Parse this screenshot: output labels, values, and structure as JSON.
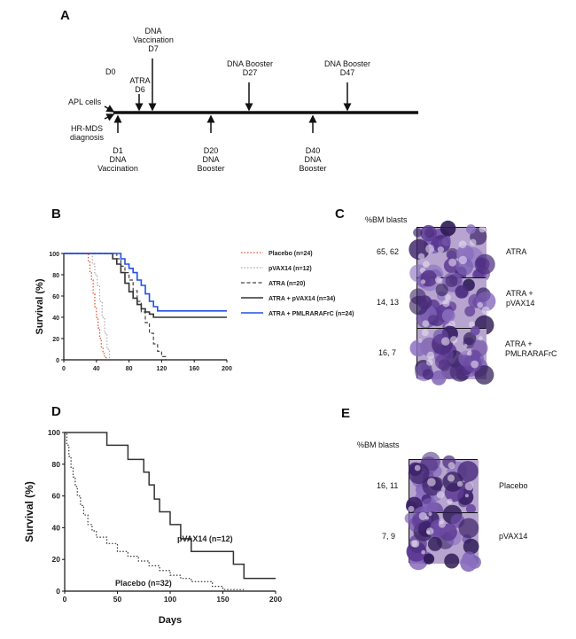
{
  "panels": {
    "a": "A",
    "b": "B",
    "c": "C",
    "d": "D",
    "e": "E"
  },
  "timeline": {
    "top_labels": {
      "d0": "D0",
      "apl": "APL cells",
      "atra_1": "ATRA",
      "atra_2": "D6",
      "vacc_1": "DNA",
      "vacc_2": "Vaccination",
      "vacc_3": "D7",
      "boost27_1": "DNA Booster",
      "boost27_2": "D27",
      "boost47_1": "DNA Booster",
      "boost47_2": "D47"
    },
    "bottom_labels": {
      "hr_1": "HR-MDS",
      "hr_2": "diagnosis",
      "d1_1": "D1",
      "d1_2": "DNA",
      "d1_3": "Vaccination",
      "d20_1": "D20",
      "d20_2": "DNA",
      "d20_3": "Booster",
      "d40_1": "D40",
      "d40_2": "DNA",
      "d40_3": "Booster"
    }
  },
  "panel_b": {
    "ylabel": "Survival (%)"
  },
  "panel_c": {
    "header": "%BM blasts",
    "rows": [
      {
        "value": "65, 62",
        "label_1": "ATRA",
        "label_2": ""
      },
      {
        "value": "14, 13",
        "label_1": "ATRA +",
        "label_2": "pVAX14"
      },
      {
        "value": "16, 7",
        "label_1": "ATRA +",
        "label_2": "PMLRARAFrC"
      }
    ]
  },
  "panel_d": {
    "ylabel": "Survival (%)",
    "xlabel": "Days"
  },
  "panel_e": {
    "header": "%BM blasts",
    "rows": [
      {
        "value": "16, 11",
        "label": "Placebo"
      },
      {
        "value": "7, 9",
        "label": "pVAX14"
      }
    ]
  },
  "colors": {
    "placebo": "#e8472b",
    "pvax14": "#a9a9a9",
    "atra": "#444444",
    "atra_pvax14": "#333333",
    "atra_pml": "#2251e0",
    "stain_dark": "#3b2268",
    "stain_light": "#b7a5cf"
  },
  "chart_data": [
    {
      "type": "line",
      "title": "",
      "xlabel": "",
      "ylabel": "Survival (%)",
      "xlim": [
        0,
        200
      ],
      "ylim": [
        0,
        100
      ],
      "xticks": [
        0,
        40,
        80,
        120,
        160,
        200
      ],
      "yticks": [
        0,
        20,
        40,
        60,
        80,
        100
      ],
      "legend_position": "right",
      "series": [
        {
          "name": "Placebo (n=24)",
          "color": "#e8472b",
          "style": "dotted",
          "x": [
            0,
            28,
            30,
            32,
            34,
            36,
            38,
            40,
            42,
            44,
            46,
            48,
            50,
            52
          ],
          "y": [
            100,
            100,
            92,
            83,
            75,
            62,
            50,
            40,
            30,
            20,
            12,
            6,
            2,
            0
          ]
        },
        {
          "name": "pVAX14 (n=12)",
          "color": "#a9a9a9",
          "style": "dotted",
          "x": [
            0,
            32,
            35,
            38,
            41,
            44,
            47,
            50,
            53,
            56
          ],
          "y": [
            100,
            100,
            90,
            80,
            70,
            55,
            40,
            25,
            10,
            0
          ]
        },
        {
          "name": "ATRA (n=20)",
          "color": "#444444",
          "style": "dashed",
          "x": [
            0,
            60,
            65,
            70,
            75,
            80,
            85,
            90,
            95,
            100,
            105,
            110,
            115,
            120,
            125
          ],
          "y": [
            100,
            100,
            95,
            88,
            82,
            75,
            65,
            55,
            45,
            35,
            25,
            15,
            8,
            3,
            0
          ]
        },
        {
          "name": "ATRA + pVAX14 (n=34)",
          "color": "#333333",
          "style": "solid",
          "x": [
            0,
            55,
            60,
            65,
            70,
            75,
            80,
            85,
            90,
            95,
            100,
            105,
            110,
            200
          ],
          "y": [
            100,
            100,
            95,
            90,
            82,
            72,
            64,
            58,
            52,
            48,
            45,
            43,
            40,
            40
          ]
        },
        {
          "name": "ATRA + PMLRARAFrC (n=24)",
          "color": "#2251e0",
          "style": "solid",
          "x": [
            0,
            65,
            70,
            75,
            80,
            85,
            90,
            95,
            100,
            105,
            110,
            115,
            200
          ],
          "y": [
            100,
            100,
            95,
            90,
            86,
            82,
            75,
            70,
            62,
            55,
            50,
            46,
            46
          ]
        }
      ]
    },
    {
      "type": "line",
      "title": "",
      "xlabel": "Days",
      "ylabel": "Survival (%)",
      "xlim": [
        0,
        200
      ],
      "ylim": [
        0,
        100
      ],
      "xticks": [
        0,
        50,
        100,
        150,
        200
      ],
      "yticks": [
        0,
        20,
        40,
        60,
        80,
        100
      ],
      "series": [
        {
          "name": "pVAX14 (n=12)",
          "color": "#333333",
          "style": "solid",
          "x": [
            0,
            20,
            40,
            60,
            75,
            80,
            85,
            90,
            100,
            110,
            120,
            160,
            170,
            200
          ],
          "y": [
            100,
            100,
            92,
            83,
            75,
            67,
            58,
            50,
            42,
            33,
            25,
            17,
            8,
            8
          ]
        },
        {
          "name": "Placebo (n=32)",
          "color": "#333333",
          "style": "dotted",
          "x": [
            0,
            2,
            4,
            6,
            8,
            10,
            12,
            15,
            18,
            22,
            26,
            30,
            40,
            50,
            60,
            70,
            80,
            90,
            100,
            110,
            120,
            140,
            150,
            170
          ],
          "y": [
            100,
            92,
            85,
            78,
            72,
            66,
            60,
            54,
            48,
            42,
            38,
            34,
            30,
            25,
            22,
            19,
            16,
            13,
            10,
            8,
            6,
            3,
            1,
            0
          ]
        }
      ]
    }
  ]
}
